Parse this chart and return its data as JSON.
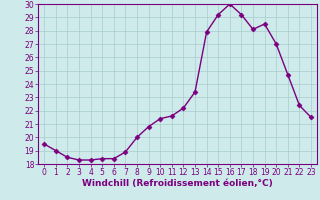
{
  "x": [
    0,
    1,
    2,
    3,
    4,
    5,
    6,
    7,
    8,
    9,
    10,
    11,
    12,
    13,
    14,
    15,
    16,
    17,
    18,
    19,
    20,
    21,
    22,
    23
  ],
  "y": [
    19.5,
    19.0,
    18.5,
    18.3,
    18.3,
    18.4,
    18.4,
    18.9,
    20.0,
    20.8,
    21.4,
    21.6,
    22.2,
    23.4,
    27.9,
    29.2,
    30.0,
    29.2,
    28.1,
    28.5,
    27.0,
    24.7,
    22.4,
    21.5
  ],
  "line_color": "#7B0080",
  "marker": "D",
  "markersize": 2.5,
  "linewidth": 1.0,
  "background_color": "#ceeaea",
  "grid_color": "#a8cccc",
  "xlabel": "Windchill (Refroidissement éolien,°C)",
  "ylabel": "",
  "ylim": [
    18,
    30
  ],
  "xlim": [
    -0.5,
    23.5
  ],
  "yticks": [
    18,
    19,
    20,
    21,
    22,
    23,
    24,
    25,
    26,
    27,
    28,
    29,
    30
  ],
  "xticks": [
    0,
    1,
    2,
    3,
    4,
    5,
    6,
    7,
    8,
    9,
    10,
    11,
    12,
    13,
    14,
    15,
    16,
    17,
    18,
    19,
    20,
    21,
    22,
    23
  ],
  "tick_fontsize": 5.5,
  "xlabel_fontsize": 6.5,
  "axis_color": "#7B0080"
}
